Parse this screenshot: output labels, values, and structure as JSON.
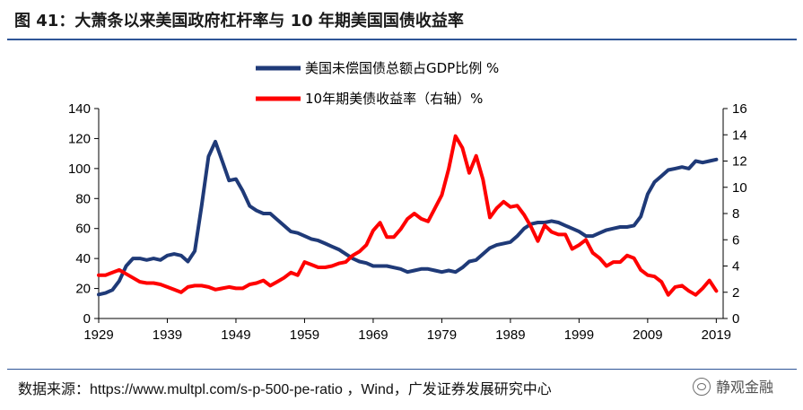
{
  "figure": {
    "title": "图 41：大萧条以来美国政府杠杆率与 10 年期美国国债收益率",
    "source": "数据来源：https://www.multpl.com/s-p-500-pe-ratio ，Wind，广发证券发展研究中心",
    "watermark": "静观金融",
    "colors": {
      "rule": "#2f5597"
    }
  },
  "chart_data": {
    "type": "line",
    "title": "",
    "xlabel": "",
    "ylabel": "",
    "xlim": [
      1929,
      2020
    ],
    "x_ticks": [
      "1929",
      "1939",
      "1949",
      "1959",
      "1969",
      "1979",
      "1989",
      "1999",
      "2009",
      "2019"
    ],
    "y_left": {
      "lim": [
        0,
        140
      ],
      "ticks": [
        "0",
        "20",
        "40",
        "60",
        "80",
        "100",
        "120",
        "140"
      ]
    },
    "y_right": {
      "lim": [
        0,
        16
      ],
      "ticks": [
        "0",
        "2",
        "4",
        "6",
        "8",
        "10",
        "12",
        "14",
        "16"
      ]
    },
    "grid": false,
    "legend_position": "top-center",
    "series": [
      {
        "name": "美国未偿国债总额占GDP比例 %",
        "axis": "left",
        "color": "#1f3a78",
        "points": [
          [
            1929,
            16
          ],
          [
            1930,
            17
          ],
          [
            1931,
            19
          ],
          [
            1932,
            25
          ],
          [
            1933,
            35
          ],
          [
            1934,
            40
          ],
          [
            1935,
            40
          ],
          [
            1936,
            39
          ],
          [
            1937,
            40
          ],
          [
            1938,
            39
          ],
          [
            1939,
            42
          ],
          [
            1940,
            43
          ],
          [
            1941,
            42
          ],
          [
            1942,
            38
          ],
          [
            1943,
            45
          ],
          [
            1944,
            75
          ],
          [
            1945,
            108
          ],
          [
            1946,
            118
          ],
          [
            1947,
            105
          ],
          [
            1948,
            92
          ],
          [
            1949,
            93
          ],
          [
            1950,
            85
          ],
          [
            1951,
            75
          ],
          [
            1952,
            72
          ],
          [
            1953,
            70
          ],
          [
            1954,
            70
          ],
          [
            1955,
            66
          ],
          [
            1956,
            62
          ],
          [
            1957,
            58
          ],
          [
            1958,
            57
          ],
          [
            1959,
            55
          ],
          [
            1960,
            53
          ],
          [
            1961,
            52
          ],
          [
            1962,
            50
          ],
          [
            1963,
            48
          ],
          [
            1964,
            46
          ],
          [
            1965,
            43
          ],
          [
            1966,
            40
          ],
          [
            1967,
            38
          ],
          [
            1968,
            37
          ],
          [
            1969,
            35
          ],
          [
            1970,
            35
          ],
          [
            1971,
            35
          ],
          [
            1972,
            34
          ],
          [
            1973,
            33
          ],
          [
            1974,
            31
          ],
          [
            1975,
            32
          ],
          [
            1976,
            33
          ],
          [
            1977,
            33
          ],
          [
            1978,
            32
          ],
          [
            1979,
            31
          ],
          [
            1980,
            32
          ],
          [
            1981,
            31
          ],
          [
            1982,
            34
          ],
          [
            1983,
            38
          ],
          [
            1984,
            39
          ],
          [
            1985,
            43
          ],
          [
            1986,
            47
          ],
          [
            1987,
            49
          ],
          [
            1988,
            50
          ],
          [
            1989,
            51
          ],
          [
            1990,
            55
          ],
          [
            1991,
            60
          ],
          [
            1992,
            63
          ],
          [
            1993,
            64
          ],
          [
            1994,
            64
          ],
          [
            1995,
            65
          ],
          [
            1996,
            64
          ],
          [
            1997,
            62
          ],
          [
            1998,
            60
          ],
          [
            1999,
            58
          ],
          [
            2000,
            55
          ],
          [
            2001,
            55
          ],
          [
            2002,
            57
          ],
          [
            2003,
            59
          ],
          [
            2004,
            60
          ],
          [
            2005,
            61
          ],
          [
            2006,
            61
          ],
          [
            2007,
            62
          ],
          [
            2008,
            68
          ],
          [
            2009,
            83
          ],
          [
            2010,
            91
          ],
          [
            2011,
            95
          ],
          [
            2012,
            99
          ],
          [
            2013,
            100
          ],
          [
            2014,
            101
          ],
          [
            2015,
            100
          ],
          [
            2016,
            105
          ],
          [
            2017,
            104
          ],
          [
            2018,
            105
          ],
          [
            2019,
            106
          ]
        ]
      },
      {
        "name": "10年期美债收益率（右轴）%",
        "axis": "right",
        "color": "#ff0000",
        "points": [
          [
            1929,
            3.3
          ],
          [
            1930,
            3.3
          ],
          [
            1931,
            3.5
          ],
          [
            1932,
            3.7
          ],
          [
            1933,
            3.4
          ],
          [
            1934,
            3.1
          ],
          [
            1935,
            2.8
          ],
          [
            1936,
            2.7
          ],
          [
            1937,
            2.7
          ],
          [
            1938,
            2.6
          ],
          [
            1939,
            2.4
          ],
          [
            1940,
            2.2
          ],
          [
            1941,
            2.0
          ],
          [
            1942,
            2.4
          ],
          [
            1943,
            2.5
          ],
          [
            1944,
            2.5
          ],
          [
            1945,
            2.4
          ],
          [
            1946,
            2.2
          ],
          [
            1947,
            2.3
          ],
          [
            1948,
            2.4
          ],
          [
            1949,
            2.3
          ],
          [
            1950,
            2.3
          ],
          [
            1951,
            2.6
          ],
          [
            1952,
            2.7
          ],
          [
            1953,
            2.9
          ],
          [
            1954,
            2.5
          ],
          [
            1955,
            2.8
          ],
          [
            1956,
            3.1
          ],
          [
            1957,
            3.5
          ],
          [
            1958,
            3.3
          ],
          [
            1959,
            4.3
          ],
          [
            1960,
            4.1
          ],
          [
            1961,
            3.9
          ],
          [
            1962,
            3.9
          ],
          [
            1963,
            4.0
          ],
          [
            1964,
            4.2
          ],
          [
            1965,
            4.3
          ],
          [
            1966,
            4.8
          ],
          [
            1967,
            5.1
          ],
          [
            1968,
            5.6
          ],
          [
            1969,
            6.7
          ],
          [
            1970,
            7.3
          ],
          [
            1971,
            6.2
          ],
          [
            1972,
            6.2
          ],
          [
            1973,
            6.8
          ],
          [
            1974,
            7.6
          ],
          [
            1975,
            8.0
          ],
          [
            1976,
            7.6
          ],
          [
            1977,
            7.4
          ],
          [
            1978,
            8.4
          ],
          [
            1979,
            9.4
          ],
          [
            1980,
            11.4
          ],
          [
            1981,
            13.9
          ],
          [
            1982,
            13.0
          ],
          [
            1983,
            11.1
          ],
          [
            1984,
            12.4
          ],
          [
            1985,
            10.6
          ],
          [
            1986,
            7.7
          ],
          [
            1987,
            8.4
          ],
          [
            1988,
            8.9
          ],
          [
            1989,
            8.5
          ],
          [
            1990,
            8.6
          ],
          [
            1991,
            7.9
          ],
          [
            1992,
            7.0
          ],
          [
            1993,
            5.9
          ],
          [
            1994,
            7.1
          ],
          [
            1995,
            6.6
          ],
          [
            1996,
            6.4
          ],
          [
            1997,
            6.4
          ],
          [
            1998,
            5.3
          ],
          [
            1999,
            5.6
          ],
          [
            2000,
            6.0
          ],
          [
            2001,
            5.0
          ],
          [
            2002,
            4.6
          ],
          [
            2003,
            4.0
          ],
          [
            2004,
            4.3
          ],
          [
            2005,
            4.3
          ],
          [
            2006,
            4.8
          ],
          [
            2007,
            4.6
          ],
          [
            2008,
            3.7
          ],
          [
            2009,
            3.3
          ],
          [
            2010,
            3.2
          ],
          [
            2011,
            2.8
          ],
          [
            2012,
            1.8
          ],
          [
            2013,
            2.4
          ],
          [
            2014,
            2.5
          ],
          [
            2015,
            2.1
          ],
          [
            2016,
            1.8
          ],
          [
            2017,
            2.3
          ],
          [
            2018,
            2.9
          ],
          [
            2019,
            2.1
          ]
        ]
      }
    ]
  }
}
